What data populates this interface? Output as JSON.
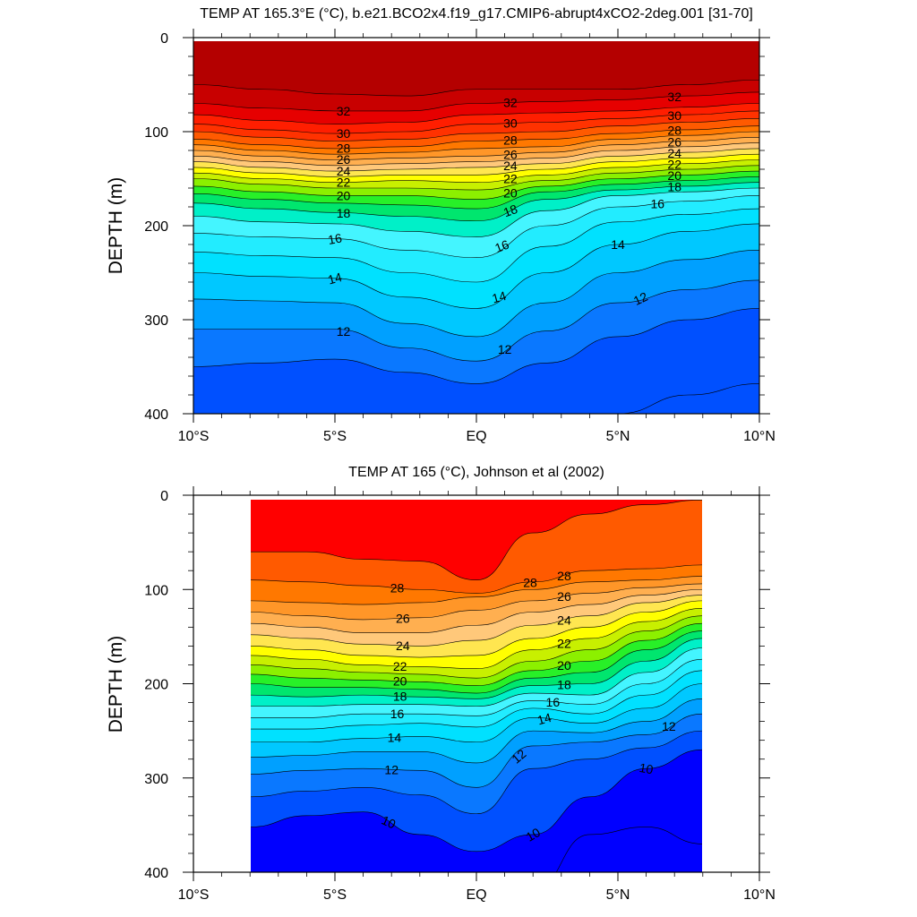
{
  "chart_data": [
    {
      "type": "contour",
      "title": "TEMP AT 165.3°E (°C), b.e21.BCO2x4.f19_g17.CMIP6-abrupt4xCO2-2deg.001 [31-70]",
      "ylabel": "DEPTH (m)",
      "xlabel": "",
      "x_units": "degrees latitude",
      "xlim": [
        -10,
        10
      ],
      "ylim": [
        400,
        0
      ],
      "y_reversed": true,
      "data_lat_range": [
        -10,
        10
      ],
      "data_depth_range": [
        5,
        400
      ],
      "xticks": [
        -10,
        -5,
        0,
        5,
        10
      ],
      "xtick_labels": [
        "10°S",
        "5°S",
        "EQ",
        "5°N",
        "10°N"
      ],
      "yticks": [
        0,
        100,
        200,
        300,
        400
      ],
      "ytick_labels": [
        "0",
        "100",
        "200",
        "300",
        "400"
      ],
      "levels": [
        10,
        11,
        12,
        13,
        14,
        15,
        16,
        17,
        18,
        19,
        20,
        21,
        22,
        23,
        24,
        25,
        26,
        27,
        28,
        29,
        30,
        31,
        32,
        33
      ],
      "level_colors": [
        "#0050ff",
        "#0a78ff",
        "#00a0ff",
        "#00c8ff",
        "#00e1ff",
        "#22ecff",
        "#44f5ff",
        "#00f0c8",
        "#00e66e",
        "#28f028",
        "#8cf000",
        "#c8f000",
        "#ffff00",
        "#ffe650",
        "#ffc87a",
        "#ffaf50",
        "#ff9628",
        "#ff7800",
        "#ff5a00",
        "#ff3200",
        "#ff1e00",
        "#e60000",
        "#c80000",
        "#b40000"
      ],
      "profiles": {
        "lat": [
          -10,
          -5,
          0,
          5,
          10
        ],
        "temperature_at_depth": [
          {
            "depth": 50,
            "values": [
              33.0,
              33.0,
              33.0,
              33.0,
              33.0
            ]
          },
          {
            "depth": 100,
            "values": [
              28.0,
              28.0,
              29.0,
              28.5,
              28.5
            ]
          },
          {
            "depth": 150,
            "values": [
              21.0,
              21.5,
              21.5,
              18.5,
              18.0
            ]
          },
          {
            "depth": 200,
            "values": [
              16.5,
              16.5,
              17.0,
              14.0,
              13.5
            ]
          },
          {
            "depth": 250,
            "values": [
              13.5,
              13.5,
              15.0,
              12.5,
              12.0
            ]
          },
          {
            "depth": 300,
            "values": [
              12.5,
              12.5,
              13.0,
              12.0,
              11.5
            ]
          },
          {
            "depth": 350,
            "values": [
              11.7,
              12.0,
              12.0,
              11.5,
              11.0
            ]
          },
          {
            "depth": 400,
            "values": [
              11.2,
              11.4,
              11.5,
              11.3,
              10.5
            ]
          }
        ]
      },
      "contour_labels": [
        "32",
        "30",
        "28",
        "26",
        "24",
        "22",
        "20",
        "18",
        "16",
        "14",
        "12",
        "32",
        "30",
        "28",
        "26",
        "24",
        "22",
        "20",
        "18",
        "16",
        "14",
        "12",
        "32",
        "30",
        "28",
        "26",
        "24",
        "22",
        "20",
        "18",
        "16",
        "14",
        "12"
      ]
    },
    {
      "type": "contour",
      "title": "TEMP AT 165 (°C), Johnson et al (2002)",
      "ylabel": "DEPTH (m)",
      "xlabel": "",
      "x_units": "degrees latitude",
      "xlim": [
        -10,
        10
      ],
      "ylim": [
        400,
        0
      ],
      "y_reversed": true,
      "data_lat_range": [
        -8,
        8
      ],
      "data_depth_range": [
        5,
        400
      ],
      "xticks": [
        -10,
        -5,
        0,
        5,
        10
      ],
      "xtick_labels": [
        "10°S",
        "5°S",
        "EQ",
        "5°N",
        "10°N"
      ],
      "yticks": [
        0,
        100,
        200,
        300,
        400
      ],
      "ytick_labels": [
        "0",
        "100",
        "200",
        "300",
        "400"
      ],
      "levels": [
        9,
        10,
        11,
        12,
        13,
        14,
        15,
        16,
        17,
        18,
        19,
        20,
        21,
        22,
        23,
        24,
        25,
        26,
        27,
        28,
        29
      ],
      "level_colors": [
        "#0000ff",
        "#0050ff",
        "#0a78ff",
        "#00a0ff",
        "#00c8ff",
        "#00e1ff",
        "#22ecff",
        "#44f5ff",
        "#00f0c8",
        "#00e66e",
        "#28f028",
        "#8cf000",
        "#c8f000",
        "#ffff00",
        "#ffe650",
        "#ffc87a",
        "#ffaf50",
        "#ff9628",
        "#ff7800",
        "#ff5a00",
        "#ff0000",
        "#e60000"
      ],
      "profiles": {
        "lat": [
          -8,
          -4,
          0,
          4,
          8
        ],
        "temperature_at_depth": [
          {
            "depth": 50,
            "values": [
              29.5,
              29.2,
              29.3,
              29.0,
              29.0
            ]
          },
          {
            "depth": 100,
            "values": [
              28.0,
              28.0,
              28.5,
              27.5,
              27.8
            ]
          },
          {
            "depth": 150,
            "values": [
              25.0,
              26.0,
              25.5,
              23.0,
              22.0
            ]
          },
          {
            "depth": 200,
            "values": [
              17.5,
              19.0,
              19.0,
              14.5,
              13.0
            ]
          },
          {
            "depth": 250,
            "values": [
              13.5,
              14.0,
              14.5,
              12.0,
              11.5
            ]
          },
          {
            "depth": 300,
            "values": [
              12.0,
              12.0,
              13.0,
              10.8,
              10.0
            ]
          },
          {
            "depth": 350,
            "values": [
              11.0,
              10.5,
              11.5,
              10.0,
              9.5
            ]
          },
          {
            "depth": 400,
            "values": [
              10.5,
              9.8,
              10.0,
              9.8,
              9.5
            ]
          }
        ]
      },
      "contour_labels": [
        "28",
        "26",
        "24",
        "22",
        "20",
        "18",
        "16",
        "14",
        "12",
        "10",
        "28",
        "26",
        "24",
        "22",
        "20",
        "18",
        "16",
        "14",
        "12",
        "10",
        "28",
        "12",
        "10"
      ]
    }
  ]
}
